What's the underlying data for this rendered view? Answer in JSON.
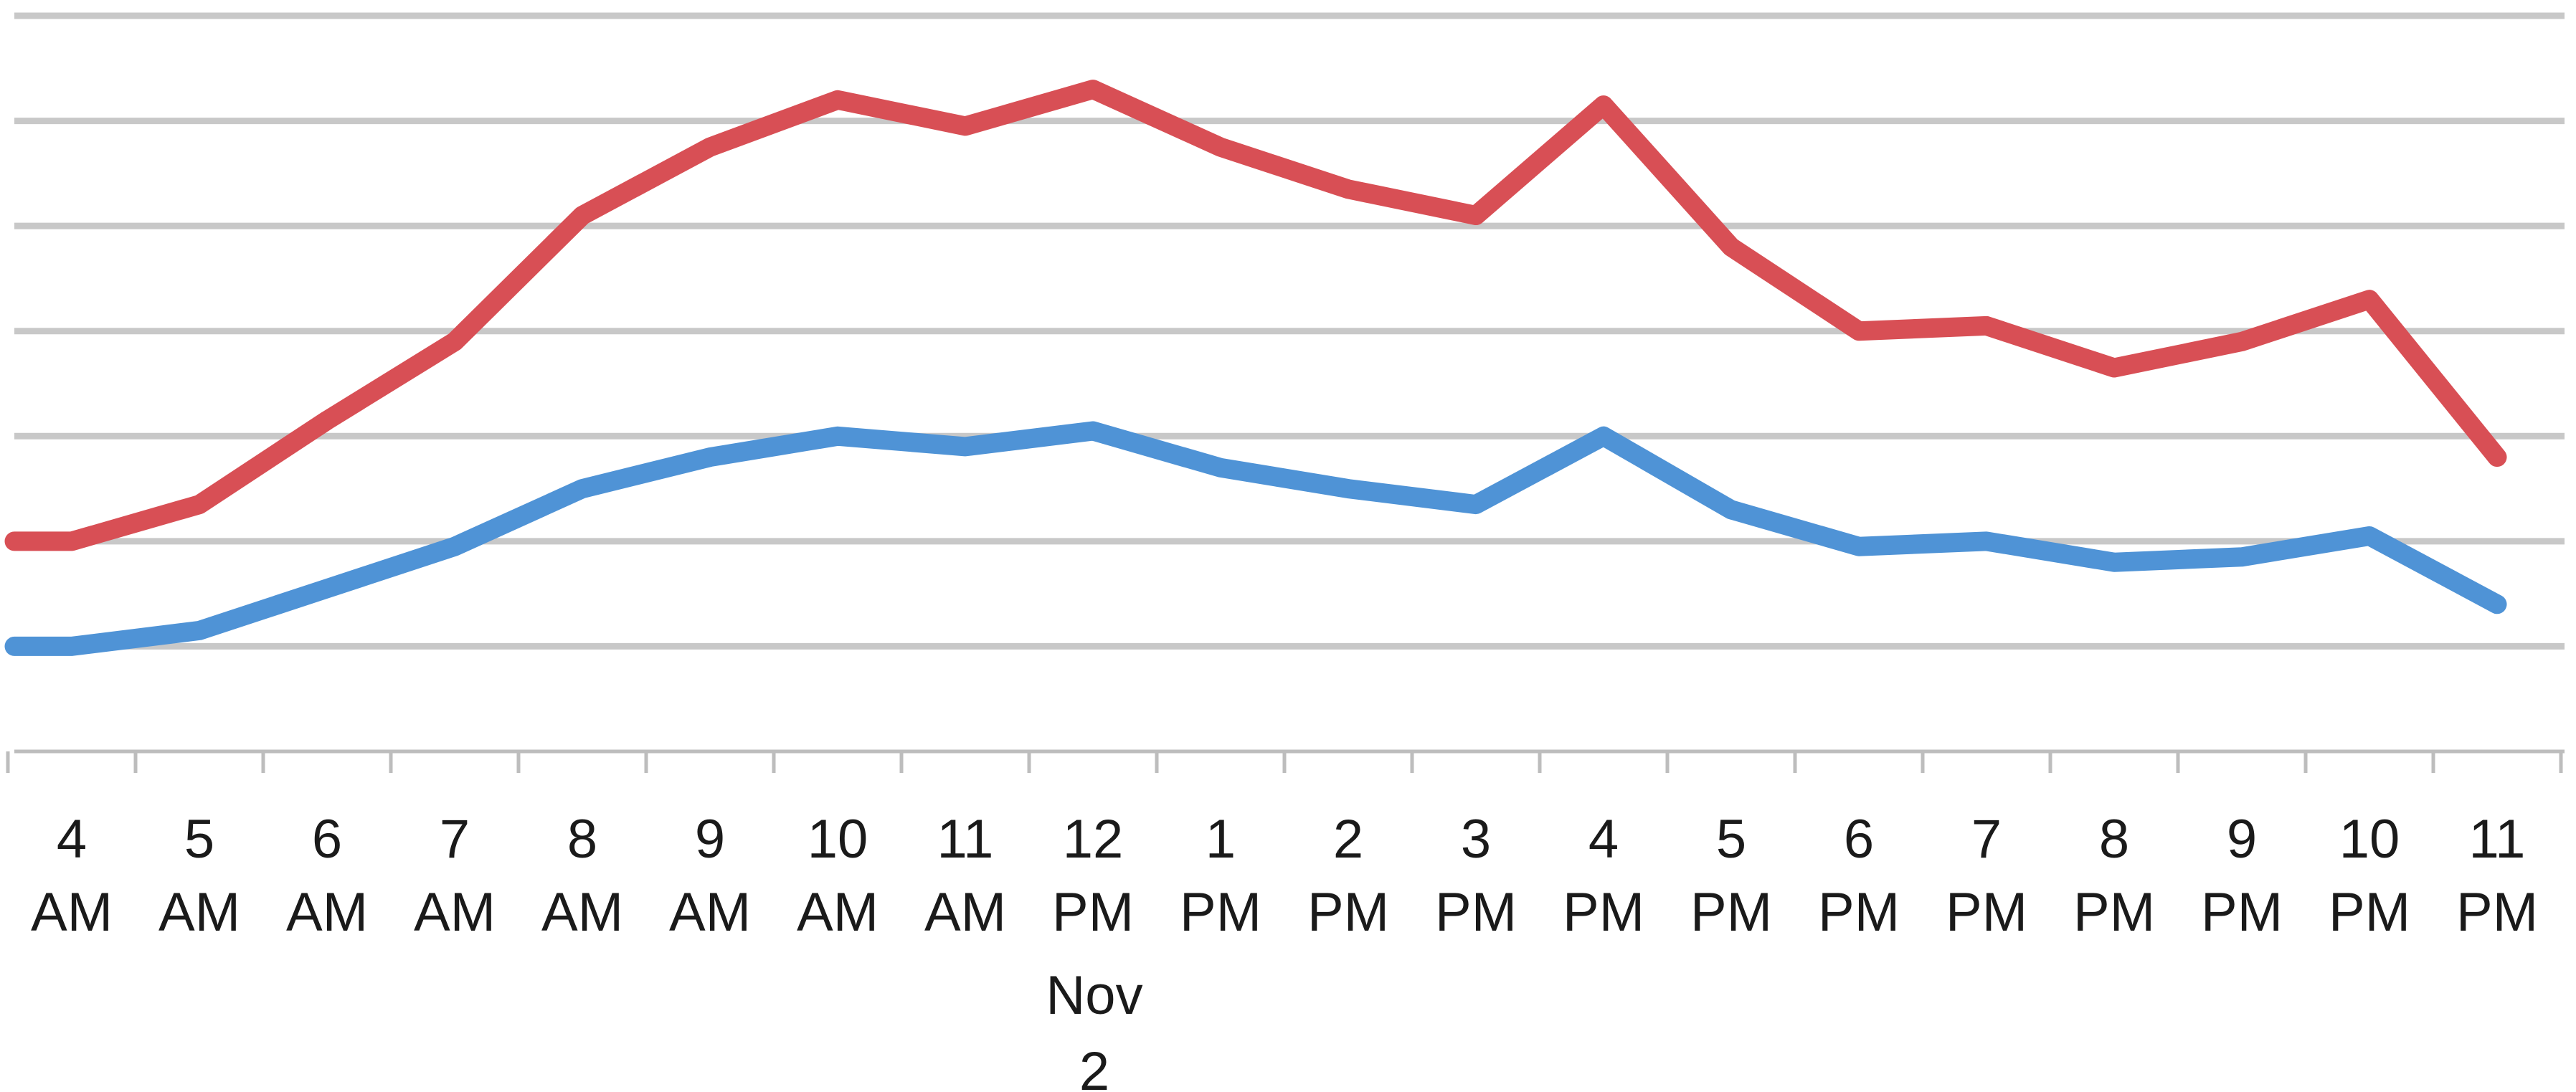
{
  "chart_data": {
    "type": "line",
    "title": "",
    "xlabel": "",
    "ylabel": "",
    "x": [
      {
        "hour": "4",
        "period": "AM"
      },
      {
        "hour": "5",
        "period": "AM"
      },
      {
        "hour": "6",
        "period": "AM"
      },
      {
        "hour": "7",
        "period": "AM"
      },
      {
        "hour": "8",
        "period": "AM"
      },
      {
        "hour": "9",
        "period": "AM"
      },
      {
        "hour": "10",
        "period": "AM"
      },
      {
        "hour": "11",
        "period": "AM"
      },
      {
        "hour": "12",
        "period": "PM"
      },
      {
        "hour": "1",
        "period": "PM"
      },
      {
        "hour": "2",
        "period": "PM"
      },
      {
        "hour": "3",
        "period": "PM"
      },
      {
        "hour": "4",
        "period": "PM"
      },
      {
        "hour": "5",
        "period": "PM"
      },
      {
        "hour": "6",
        "period": "PM"
      },
      {
        "hour": "7",
        "period": "PM"
      },
      {
        "hour": "8",
        "period": "PM"
      },
      {
        "hour": "9",
        "period": "PM"
      },
      {
        "hour": "10",
        "period": "PM"
      },
      {
        "hour": "11",
        "period": "PM"
      }
    ],
    "date_label": {
      "month": "Nov",
      "day": "2"
    },
    "ylim": [
      0,
      7
    ],
    "gridlines": [
      1,
      2,
      3,
      4,
      5,
      6,
      7
    ],
    "grid": true,
    "y_tick_labels_shown": false,
    "series": [
      {
        "color": "#d84f55",
        "values": [
          2.0,
          2.35,
          3.15,
          3.9,
          5.1,
          5.75,
          6.2,
          5.95,
          6.3,
          5.75,
          5.35,
          5.1,
          6.15,
          4.8,
          4.0,
          4.05,
          3.65,
          3.9,
          4.3,
          2.8
        ]
      },
      {
        "color": "#4f93d6",
        "values": [
          1.0,
          1.15,
          1.55,
          1.95,
          2.5,
          2.8,
          3.0,
          2.9,
          3.05,
          2.7,
          2.5,
          2.35,
          3.0,
          2.3,
          1.95,
          2.0,
          1.8,
          1.85,
          2.05,
          1.4
        ]
      }
    ]
  }
}
